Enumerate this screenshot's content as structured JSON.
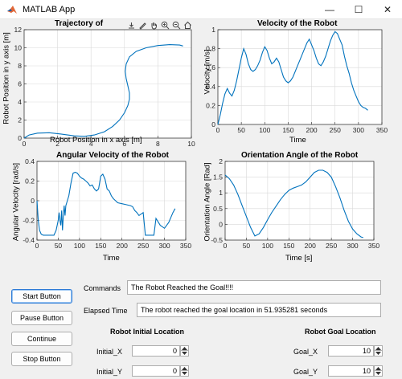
{
  "window": {
    "title": "MATLAB App",
    "controls": {
      "minimize": "—",
      "maximize": "☐",
      "close": "✕"
    }
  },
  "colors": {
    "line": "#0072bd",
    "grid": "#d9d9d9",
    "axis": "#262626"
  },
  "axes_toolbar": {
    "icons": [
      "export-icon",
      "brush-icon",
      "pan-icon",
      "zoom-in-icon",
      "zoom-out-icon",
      "home-icon"
    ]
  },
  "chart_data": [
    {
      "type": "line",
      "title": "Trajectory of",
      "xlabel": "Robot Position in x axis [m]",
      "ylabel": "Robot Position in y axis [m]",
      "xlim": [
        0,
        10
      ],
      "ylim": [
        0,
        12
      ],
      "xticks": [
        0,
        2,
        4,
        6,
        8,
        10
      ],
      "yticks": [
        0,
        2,
        4,
        6,
        8,
        10,
        12
      ],
      "grid": true,
      "series": [
        {
          "x": [
            0,
            0.3,
            0.8,
            1.5,
            2.2,
            3.0,
            3.6,
            4.2,
            4.8,
            5.3,
            5.7,
            6.0,
            6.2,
            6.3,
            6.3,
            6.2,
            6.1,
            6.05,
            6.1,
            6.3,
            6.7,
            7.3,
            8.0,
            8.7,
            9.3,
            9.5
          ],
          "y": [
            0,
            0.35,
            0.55,
            0.6,
            0.45,
            0.25,
            0.2,
            0.35,
            0.7,
            1.3,
            2.0,
            2.8,
            3.6,
            4.3,
            5.0,
            5.8,
            6.6,
            7.4,
            8.2,
            9.0,
            9.6,
            10.0,
            10.25,
            10.35,
            10.3,
            10.2
          ]
        }
      ]
    },
    {
      "type": "line",
      "title": "Velocity of the Robot",
      "xlabel": "Time",
      "ylabel": "Velocity [m/s]",
      "xlim": [
        0,
        350
      ],
      "ylim": [
        0,
        1
      ],
      "xticks": [
        0,
        50,
        100,
        150,
        200,
        250,
        300,
        350
      ],
      "yticks": [
        0,
        0.2,
        0.4,
        0.6,
        0.8,
        1
      ],
      "grid": true,
      "series": [
        {
          "x": [
            0,
            5,
            10,
            15,
            20,
            25,
            30,
            35,
            40,
            45,
            50,
            55,
            60,
            65,
            70,
            75,
            80,
            85,
            90,
            95,
            100,
            105,
            110,
            115,
            120,
            125,
            130,
            135,
            140,
            145,
            150,
            155,
            160,
            165,
            170,
            175,
            180,
            185,
            190,
            195,
            200,
            205,
            210,
            215,
            220,
            225,
            230,
            235,
            240,
            245,
            250,
            255,
            260,
            265,
            270,
            275,
            280,
            285,
            290,
            295,
            300,
            305,
            310,
            315,
            320
          ],
          "y": [
            0,
            0.1,
            0.22,
            0.32,
            0.38,
            0.33,
            0.3,
            0.36,
            0.46,
            0.58,
            0.7,
            0.8,
            0.74,
            0.64,
            0.58,
            0.56,
            0.58,
            0.62,
            0.68,
            0.76,
            0.82,
            0.78,
            0.7,
            0.64,
            0.66,
            0.7,
            0.66,
            0.58,
            0.5,
            0.46,
            0.44,
            0.46,
            0.5,
            0.56,
            0.62,
            0.68,
            0.74,
            0.8,
            0.86,
            0.9,
            0.84,
            0.78,
            0.7,
            0.64,
            0.62,
            0.66,
            0.72,
            0.8,
            0.88,
            0.94,
            0.98,
            0.96,
            0.9,
            0.84,
            0.72,
            0.62,
            0.54,
            0.44,
            0.36,
            0.3,
            0.24,
            0.2,
            0.18,
            0.17,
            0.15
          ]
        }
      ]
    },
    {
      "type": "line",
      "title": "Angular Velocity of the Robot",
      "xlabel": "Time",
      "ylabel": "Angular Velocity [rad/s]",
      "xlim": [
        0,
        350
      ],
      "ylim": [
        -0.4,
        0.4
      ],
      "xticks": [
        0,
        50,
        100,
        150,
        200,
        250,
        300,
        350
      ],
      "yticks": [
        -0.4,
        -0.2,
        0,
        0.2,
        0.4
      ],
      "grid": true,
      "series": [
        {
          "x": [
            0,
            3,
            6,
            10,
            15,
            20,
            25,
            30,
            35,
            40,
            45,
            50,
            52,
            54,
            56,
            58,
            60,
            62,
            64,
            66,
            68,
            70,
            75,
            80,
            85,
            90,
            95,
            100,
            105,
            110,
            115,
            120,
            125,
            130,
            135,
            140,
            145,
            150,
            155,
            160,
            165,
            170,
            175,
            180,
            185,
            190,
            200,
            210,
            220,
            225,
            230,
            235,
            240,
            250,
            255,
            260,
            265,
            270,
            275,
            280,
            290,
            300,
            310,
            320,
            325
          ],
          "y": [
            0,
            -0.2,
            -0.3,
            -0.34,
            -0.35,
            -0.35,
            -0.35,
            -0.35,
            -0.35,
            -0.35,
            -0.3,
            -0.2,
            -0.12,
            -0.2,
            -0.25,
            -0.1,
            -0.3,
            -0.15,
            -0.05,
            -0.15,
            -0.05,
            -0.02,
            0.05,
            0.18,
            0.28,
            0.29,
            0.28,
            0.25,
            0.23,
            0.22,
            0.2,
            0.18,
            0.15,
            0.16,
            0.12,
            0.1,
            0.12,
            0.25,
            0.27,
            0.22,
            0.12,
            0.1,
            0.05,
            0.02,
            0.0,
            -0.02,
            -0.03,
            -0.04,
            -0.05,
            -0.06,
            -0.1,
            -0.12,
            -0.15,
            -0.12,
            -0.35,
            -0.35,
            -0.35,
            -0.35,
            -0.35,
            -0.18,
            -0.25,
            -0.28,
            -0.22,
            -0.12,
            -0.08
          ]
        }
      ]
    },
    {
      "type": "line",
      "title": "Orientation Angle of the Robot",
      "xlabel": "Time [s]",
      "ylabel": "Orientation Angle [Rad]",
      "xlim": [
        0,
        350
      ],
      "ylim": [
        -0.5,
        2
      ],
      "xticks": [
        0,
        50,
        100,
        150,
        200,
        250,
        300,
        350
      ],
      "yticks": [
        -0.5,
        0,
        0.5,
        1,
        1.5,
        2
      ],
      "grid": true,
      "series": [
        {
          "x": [
            0,
            10,
            20,
            30,
            40,
            50,
            60,
            70,
            80,
            90,
            100,
            110,
            120,
            130,
            140,
            150,
            160,
            170,
            180,
            190,
            200,
            210,
            220,
            230,
            240,
            250,
            260,
            270,
            280,
            290,
            300,
            310,
            320,
            325
          ],
          "y": [
            1.57,
            1.45,
            1.25,
            0.95,
            0.6,
            0.25,
            -0.1,
            -0.37,
            -0.3,
            -0.1,
            0.15,
            0.38,
            0.58,
            0.78,
            0.95,
            1.08,
            1.15,
            1.2,
            1.25,
            1.35,
            1.5,
            1.65,
            1.72,
            1.72,
            1.65,
            1.5,
            1.2,
            0.85,
            0.45,
            0.1,
            -0.15,
            -0.3,
            -0.4,
            -0.42
          ]
        }
      ]
    }
  ],
  "controls": {
    "buttons": {
      "start": "Start Button",
      "pause": "Pause Button",
      "continue": "Continue",
      "stop": "Stop Button"
    },
    "commands_label": "Commands",
    "commands_value": "The Robot Reached the Goal!!!!",
    "elapsed_label": "Elapsed Time",
    "elapsed_value": "The robot reached the goal location in 51.935281 seconds",
    "initial": {
      "title": "Robot Initial Location",
      "x_label": "Initial_X",
      "x_value": "0",
      "y_label": "Initial_Y",
      "y_value": "0"
    },
    "goal": {
      "title": "Robot Goal Location",
      "x_label": "Goal_X",
      "x_value": "10",
      "y_label": "Goal_Y",
      "y_value": "10"
    }
  }
}
